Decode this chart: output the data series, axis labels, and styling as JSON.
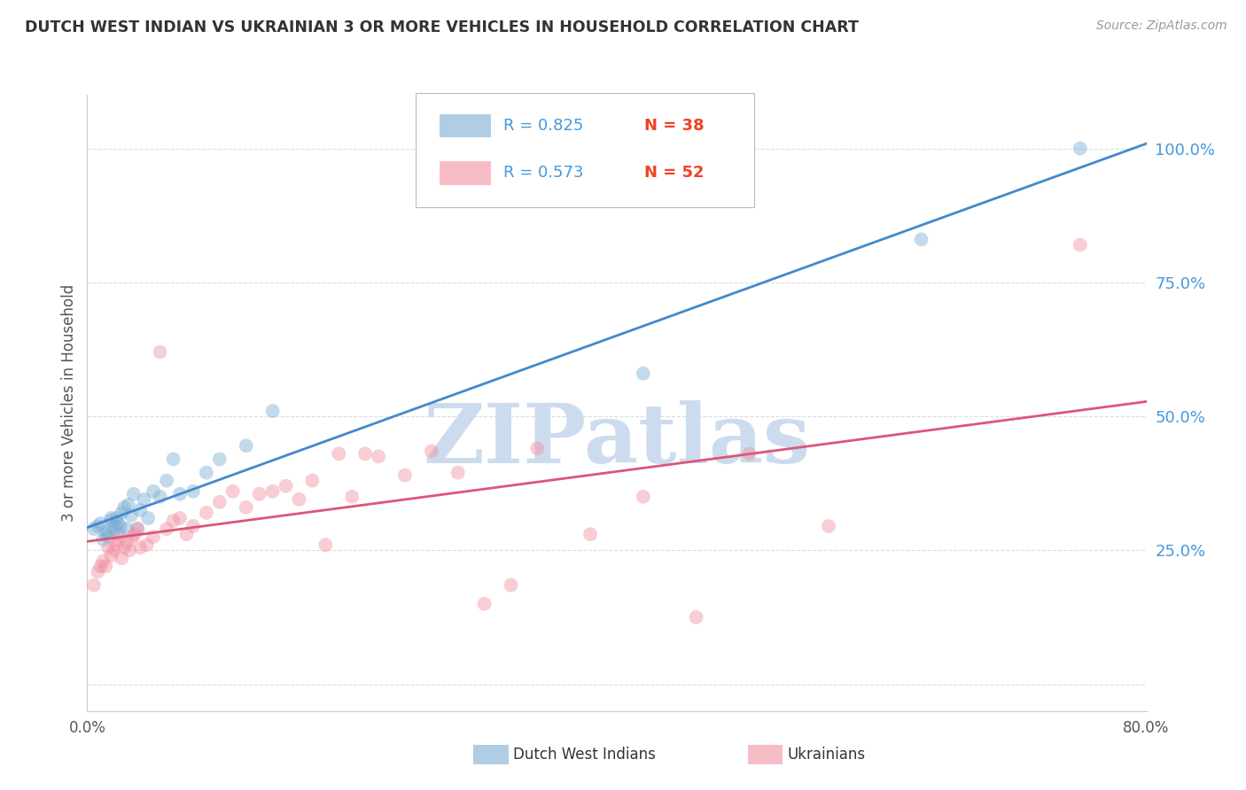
{
  "title": "DUTCH WEST INDIAN VS UKRAINIAN 3 OR MORE VEHICLES IN HOUSEHOLD CORRELATION CHART",
  "source": "Source: ZipAtlas.com",
  "ylabel": "3 or more Vehicles in Household",
  "ytick_labels": [
    "",
    "25.0%",
    "50.0%",
    "75.0%",
    "100.0%"
  ],
  "ytick_values": [
    0.0,
    0.25,
    0.5,
    0.75,
    1.0
  ],
  "xlim": [
    0.0,
    0.8
  ],
  "ylim": [
    -0.05,
    1.1
  ],
  "legend_entry1": {
    "label": "Dutch West Indians",
    "R": 0.825,
    "N": 38,
    "color": "#7aadd4"
  },
  "legend_entry2": {
    "label": "Ukrainians",
    "R": 0.573,
    "N": 52,
    "color": "#f090a0"
  },
  "line_color1": "#4488cc",
  "line_color2": "#dd5577",
  "watermark": "ZIPatlas",
  "watermark_color": "#ccdcee",
  "grid_color": "#dddddd",
  "background_color": "#ffffff",
  "title_color": "#333333",
  "source_color": "#999999",
  "ylabel_color": "#555555",
  "ytick_color": "#4499dd",
  "xtick_color": "#555555",
  "legend_R_color": "#4499dd",
  "legend_N_color": "#ee4422",
  "dutch_west_indian_x": [
    0.005,
    0.008,
    0.01,
    0.012,
    0.014,
    0.015,
    0.016,
    0.018,
    0.018,
    0.02,
    0.021,
    0.022,
    0.023,
    0.024,
    0.025,
    0.026,
    0.028,
    0.03,
    0.031,
    0.033,
    0.035,
    0.038,
    0.04,
    0.043,
    0.046,
    0.05,
    0.055,
    0.06,
    0.065,
    0.07,
    0.08,
    0.09,
    0.1,
    0.12,
    0.14,
    0.42,
    0.63,
    0.75
  ],
  "dutch_west_indian_y": [
    0.29,
    0.295,
    0.3,
    0.27,
    0.28,
    0.285,
    0.275,
    0.305,
    0.31,
    0.29,
    0.295,
    0.31,
    0.3,
    0.28,
    0.295,
    0.32,
    0.33,
    0.29,
    0.335,
    0.315,
    0.355,
    0.29,
    0.325,
    0.345,
    0.31,
    0.36,
    0.35,
    0.38,
    0.42,
    0.355,
    0.36,
    0.395,
    0.42,
    0.445,
    0.51,
    0.58,
    0.83,
    1.0
  ],
  "ukrainian_x": [
    0.005,
    0.008,
    0.01,
    0.012,
    0.014,
    0.016,
    0.018,
    0.02,
    0.022,
    0.024,
    0.026,
    0.028,
    0.03,
    0.032,
    0.034,
    0.036,
    0.038,
    0.04,
    0.045,
    0.05,
    0.055,
    0.06,
    0.065,
    0.07,
    0.075,
    0.08,
    0.09,
    0.1,
    0.11,
    0.12,
    0.13,
    0.14,
    0.15,
    0.16,
    0.17,
    0.18,
    0.19,
    0.2,
    0.21,
    0.22,
    0.24,
    0.26,
    0.28,
    0.3,
    0.32,
    0.34,
    0.38,
    0.42,
    0.46,
    0.5,
    0.56,
    0.75
  ],
  "ukrainian_y": [
    0.185,
    0.21,
    0.22,
    0.23,
    0.22,
    0.255,
    0.24,
    0.25,
    0.26,
    0.27,
    0.235,
    0.255,
    0.265,
    0.25,
    0.275,
    0.28,
    0.29,
    0.255,
    0.26,
    0.275,
    0.62,
    0.29,
    0.305,
    0.31,
    0.28,
    0.295,
    0.32,
    0.34,
    0.36,
    0.33,
    0.355,
    0.36,
    0.37,
    0.345,
    0.38,
    0.26,
    0.43,
    0.35,
    0.43,
    0.425,
    0.39,
    0.435,
    0.395,
    0.15,
    0.185,
    0.44,
    0.28,
    0.35,
    0.125,
    0.43,
    0.295,
    0.82
  ]
}
